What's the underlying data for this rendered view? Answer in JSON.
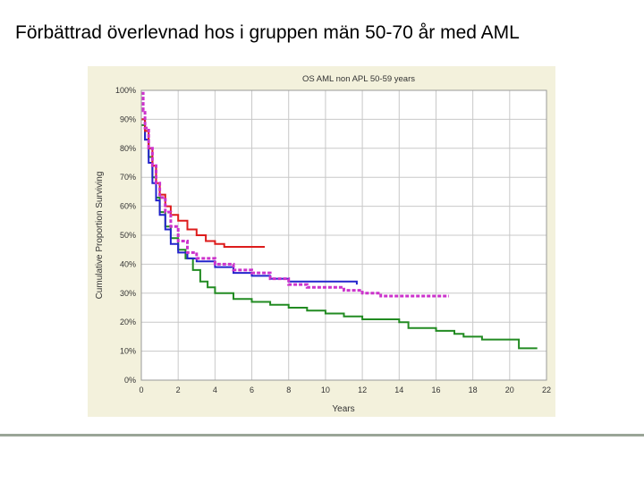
{
  "slide": {
    "title": "Förbättrad överlevnad hos i gruppen män 50-70 år med AML"
  },
  "colors": {
    "background": "#ffffff",
    "panel": "#f3f1dc",
    "plot_bg": "#ffffff",
    "grid": "#c8c8c8",
    "text": "#333333",
    "footer_rule": "#9aa597"
  },
  "chart_data": {
    "type": "line",
    "title": "OS AML non APL 50-59 years",
    "xlabel": "Years",
    "ylabel": "Cumulative Proportion Surviving",
    "xlim": [
      0,
      22
    ],
    "ylim": [
      0,
      1
    ],
    "x_ticks": [
      0,
      2,
      4,
      6,
      8,
      10,
      12,
      14,
      16,
      18,
      20,
      22
    ],
    "y_ticks": [
      0,
      0.1,
      0.2,
      0.3,
      0.4,
      0.5,
      0.6,
      0.7,
      0.8,
      0.9,
      1.0
    ],
    "y_tick_labels": [
      "0%",
      "10%",
      "20%",
      "30%",
      "40%",
      "50%",
      "60%",
      "70%",
      "80%",
      "90%",
      "100%"
    ],
    "grid": true,
    "step": true,
    "series": [
      {
        "color": "#228b22",
        "style": "solid",
        "points": [
          [
            0,
            0.88
          ],
          [
            0.2,
            0.83
          ],
          [
            0.4,
            0.77
          ],
          [
            0.6,
            0.7
          ],
          [
            0.8,
            0.63
          ],
          [
            1.0,
            0.58
          ],
          [
            1.3,
            0.53
          ],
          [
            1.6,
            0.49
          ],
          [
            2.0,
            0.45
          ],
          [
            2.4,
            0.42
          ],
          [
            2.8,
            0.38
          ],
          [
            3.2,
            0.34
          ],
          [
            3.6,
            0.32
          ],
          [
            4.0,
            0.3
          ],
          [
            5.0,
            0.28
          ],
          [
            6.0,
            0.27
          ],
          [
            7.0,
            0.26
          ],
          [
            8.0,
            0.25
          ],
          [
            9.0,
            0.24
          ],
          [
            10.0,
            0.23
          ],
          [
            11.0,
            0.22
          ],
          [
            12.0,
            0.21
          ],
          [
            14.0,
            0.2
          ],
          [
            14.5,
            0.18
          ],
          [
            16.0,
            0.17
          ],
          [
            17.0,
            0.16
          ],
          [
            17.5,
            0.15
          ],
          [
            18.5,
            0.14
          ],
          [
            20.0,
            0.14
          ],
          [
            20.5,
            0.11
          ],
          [
            21.5,
            0.11
          ]
        ]
      },
      {
        "color": "#2323cc",
        "style": "solid",
        "points": [
          [
            0,
            0.9
          ],
          [
            0.2,
            0.83
          ],
          [
            0.4,
            0.75
          ],
          [
            0.6,
            0.68
          ],
          [
            0.8,
            0.62
          ],
          [
            1.0,
            0.57
          ],
          [
            1.3,
            0.52
          ],
          [
            1.6,
            0.47
          ],
          [
            2.0,
            0.44
          ],
          [
            2.5,
            0.42
          ],
          [
            3.0,
            0.41
          ],
          [
            4.0,
            0.39
          ],
          [
            5.0,
            0.37
          ],
          [
            6.0,
            0.36
          ],
          [
            7.0,
            0.35
          ],
          [
            8.0,
            0.34
          ],
          [
            9.0,
            0.34
          ],
          [
            11.7,
            0.33
          ]
        ]
      },
      {
        "color": "#dd1c1c",
        "style": "solid",
        "points": [
          [
            0,
            0.9
          ],
          [
            0.2,
            0.86
          ],
          [
            0.4,
            0.8
          ],
          [
            0.6,
            0.74
          ],
          [
            0.8,
            0.68
          ],
          [
            1.0,
            0.64
          ],
          [
            1.3,
            0.6
          ],
          [
            1.6,
            0.57
          ],
          [
            2.0,
            0.55
          ],
          [
            2.5,
            0.52
          ],
          [
            3.0,
            0.5
          ],
          [
            3.5,
            0.48
          ],
          [
            4.0,
            0.47
          ],
          [
            4.5,
            0.46
          ],
          [
            6.7,
            0.46
          ]
        ]
      },
      {
        "color": "#cc33cc",
        "style": "dashed",
        "points": [
          [
            0,
            0.99
          ],
          [
            0.1,
            0.93
          ],
          [
            0.2,
            0.87
          ],
          [
            0.4,
            0.8
          ],
          [
            0.6,
            0.74
          ],
          [
            0.8,
            0.68
          ],
          [
            1.0,
            0.63
          ],
          [
            1.3,
            0.58
          ],
          [
            1.6,
            0.53
          ],
          [
            2.0,
            0.48
          ],
          [
            2.5,
            0.44
          ],
          [
            3.0,
            0.42
          ],
          [
            4.0,
            0.4
          ],
          [
            5.0,
            0.38
          ],
          [
            6.0,
            0.37
          ],
          [
            7.0,
            0.35
          ],
          [
            8.0,
            0.33
          ],
          [
            9.0,
            0.32
          ],
          [
            11.0,
            0.31
          ],
          [
            12.0,
            0.3
          ],
          [
            13.0,
            0.29
          ],
          [
            16.7,
            0.29
          ]
        ]
      }
    ]
  }
}
